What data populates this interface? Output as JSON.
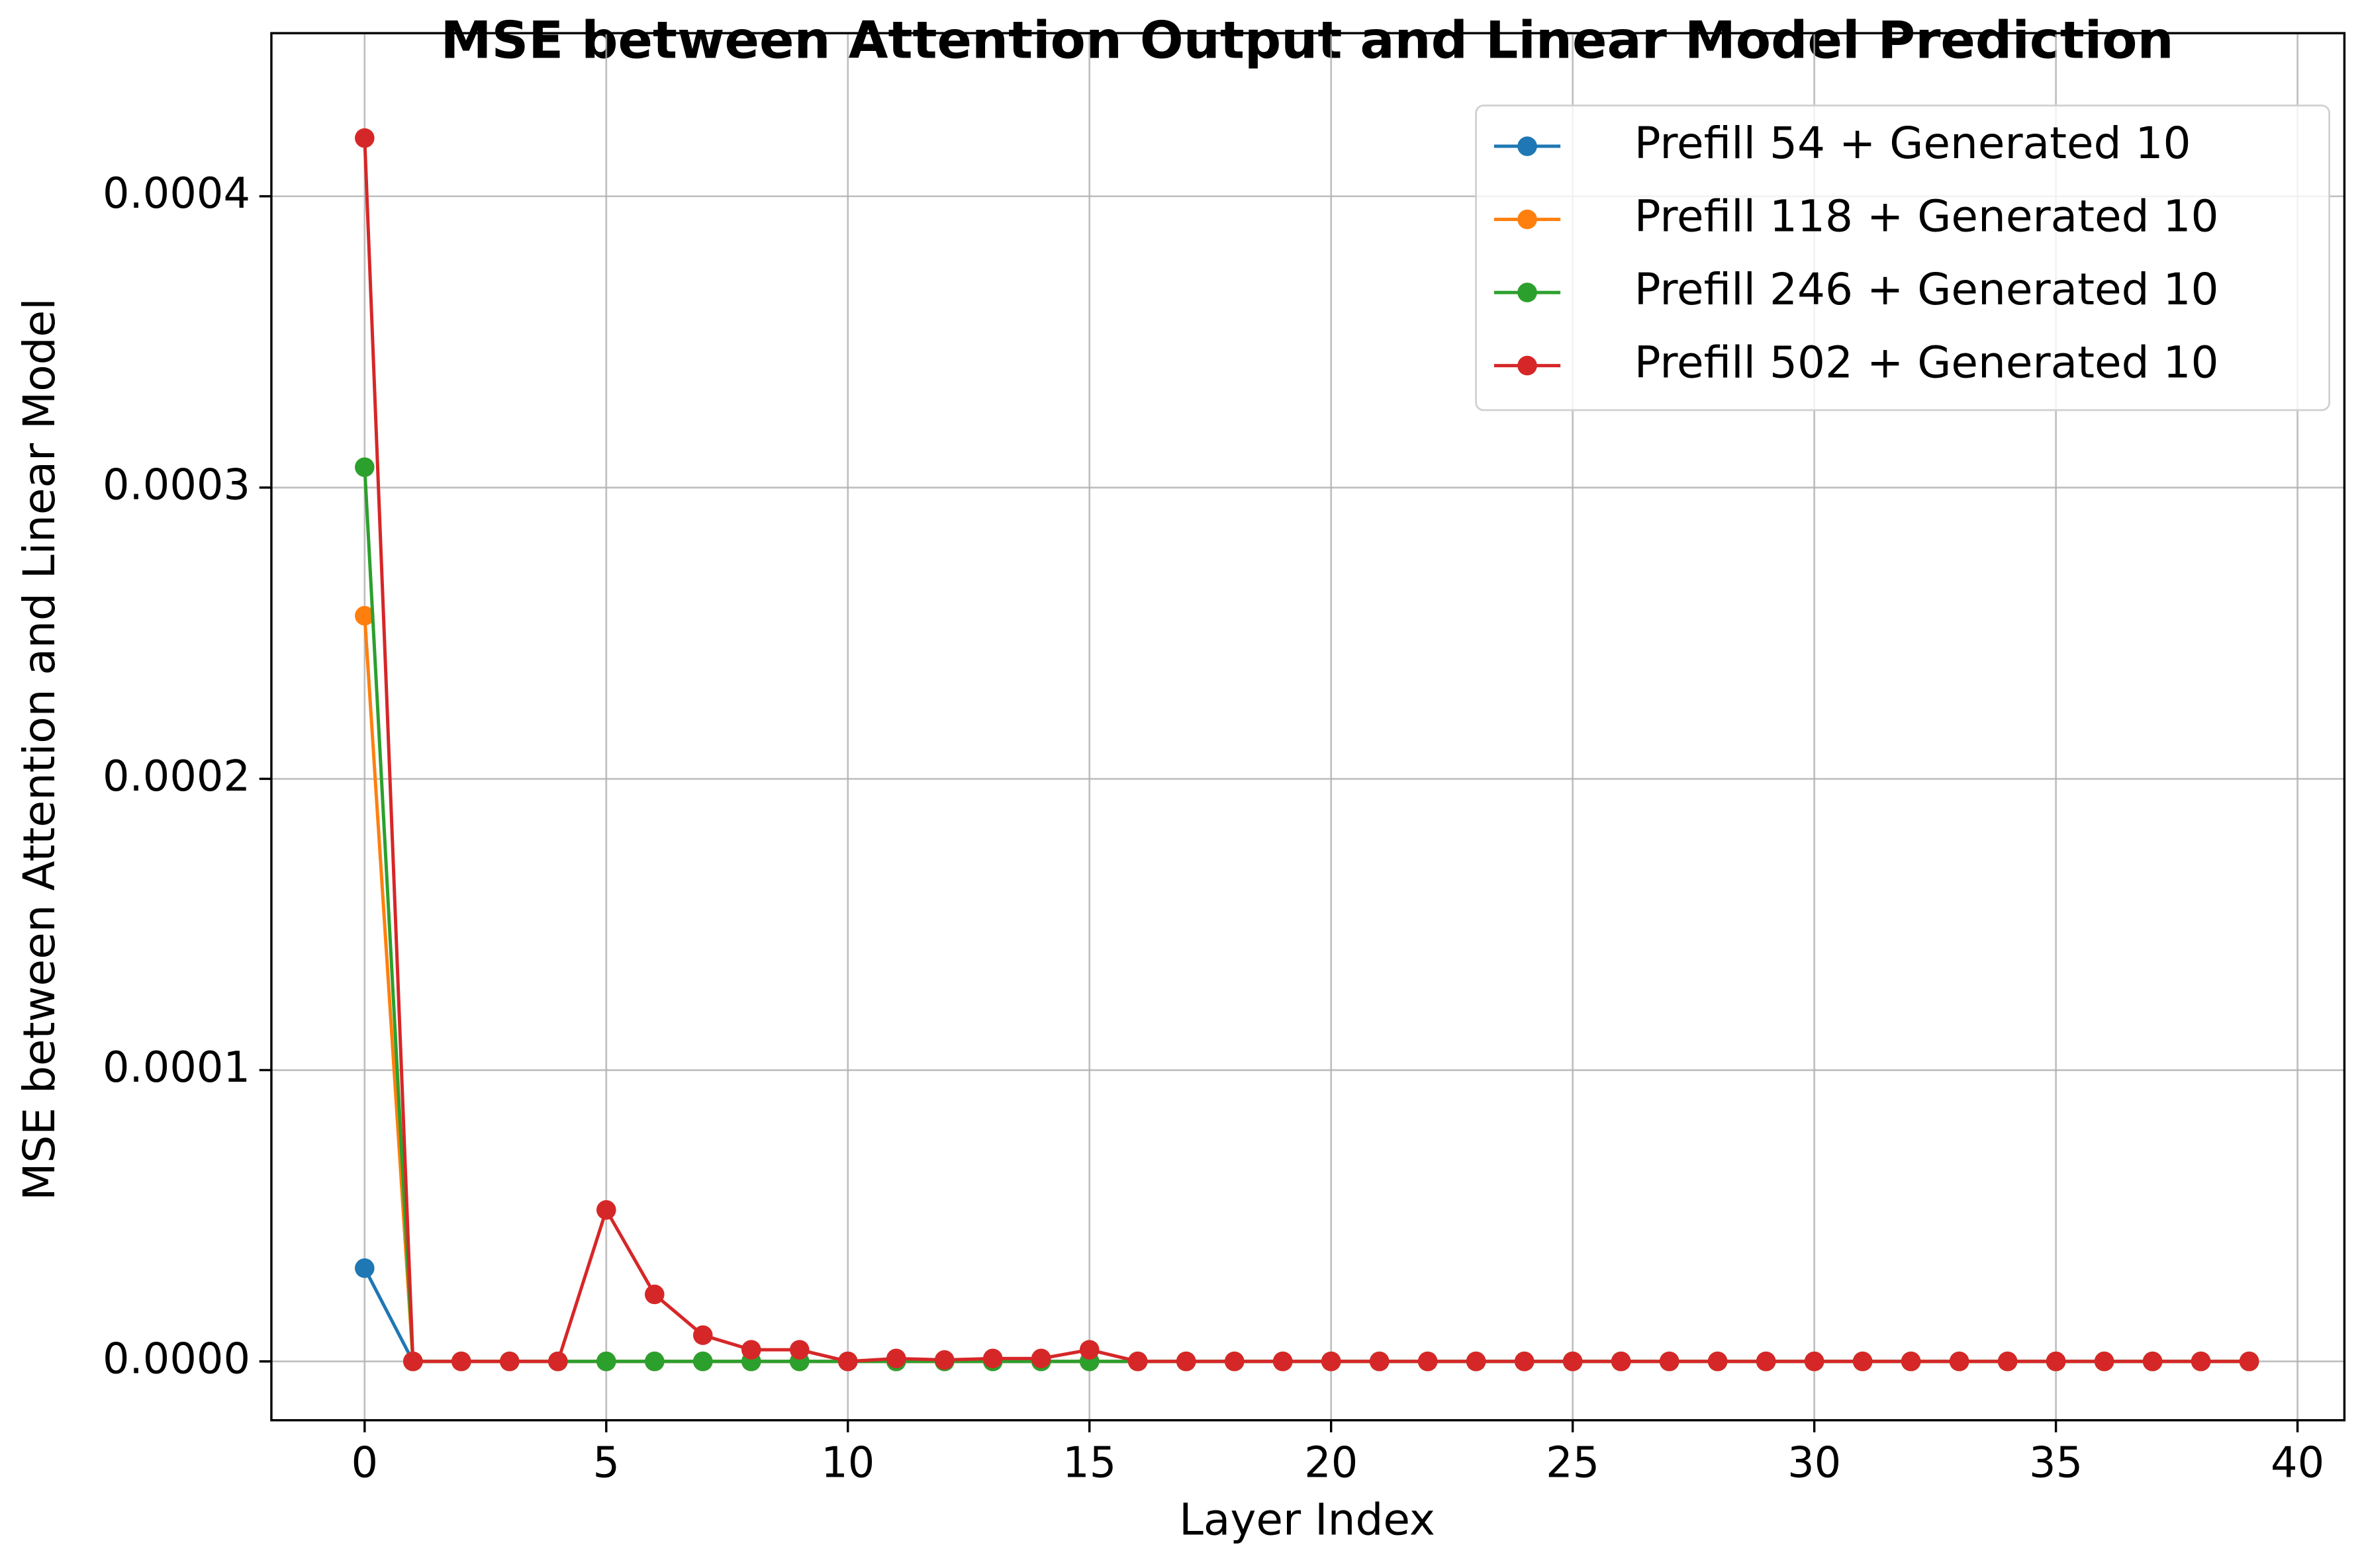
{
  "chart_data": {
    "type": "line",
    "title": "MSE between Attention Output and Linear Model Prediction",
    "xlabel": "Layer Index",
    "ylabel": "MSE between Attention and Linear Model",
    "x": [
      0,
      1,
      2,
      3,
      4,
      5,
      6,
      7,
      8,
      9,
      10,
      11,
      12,
      13,
      14,
      15,
      16,
      17,
      18,
      19,
      20,
      21,
      22,
      23,
      24,
      25,
      26,
      27,
      28,
      29,
      30,
      31,
      32,
      33,
      34,
      35,
      36,
      37,
      38,
      39
    ],
    "series": [
      {
        "name": "Prefill 54 + Generated 10",
        "color": "#1f77b4",
        "values": [
          3.2e-05,
          0,
          0,
          0,
          0,
          0,
          0,
          0,
          0,
          0,
          0,
          0,
          0,
          0,
          0,
          0,
          0,
          0,
          0,
          0,
          0,
          0,
          0,
          0,
          0,
          0,
          0,
          0,
          0,
          0,
          0,
          0,
          0,
          0,
          0,
          0,
          0,
          0,
          0,
          0
        ]
      },
      {
        "name": "Prefill 118 + Generated 10",
        "color": "#ff7f0e",
        "values": [
          0.000256,
          0,
          0,
          0,
          0,
          0,
          0,
          0,
          0,
          0,
          0,
          0,
          0,
          0,
          0,
          0,
          0,
          0,
          0,
          0,
          0,
          0,
          0,
          0,
          0,
          0,
          0,
          0,
          0,
          0,
          0,
          0,
          0,
          0,
          0,
          0,
          0,
          0,
          0,
          0
        ]
      },
      {
        "name": "Prefill 246 + Generated 10",
        "color": "#2ca02c",
        "values": [
          0.000307,
          0,
          0,
          0,
          0,
          0,
          0,
          0,
          0,
          0,
          0,
          0,
          0,
          0,
          0,
          0,
          0,
          0,
          0,
          0,
          0,
          0,
          0,
          0,
          0,
          0,
          0,
          0,
          0,
          0,
          0,
          0,
          0,
          0,
          0,
          0,
          0,
          0,
          0,
          0
        ]
      },
      {
        "name": "Prefill 502 + Generated 10",
        "color": "#d62728",
        "values": [
          0.00042,
          0,
          0,
          0,
          0,
          5.2e-05,
          2.3e-05,
          9e-06,
          4e-06,
          4e-06,
          0,
          1e-06,
          5e-07,
          1e-06,
          1e-06,
          4e-06,
          0,
          0,
          0,
          0,
          0,
          0,
          0,
          0,
          0,
          0,
          0,
          0,
          0,
          0,
          0,
          0,
          0,
          0,
          0,
          0,
          0,
          0,
          0,
          0
        ]
      }
    ],
    "xlim": [
      -1.93,
      40.97
    ],
    "xticks": [
      0,
      5,
      10,
      15,
      20,
      25,
      30,
      35,
      40
    ],
    "ylim": [
      -2.02e-05,
      0.000456
    ],
    "yticks": [
      {
        "value": 0,
        "label": "0.0000"
      },
      {
        "value": 0.0001,
        "label": "0.0001"
      },
      {
        "value": 0.0002,
        "label": "0.0002"
      },
      {
        "value": 0.0003,
        "label": "0.0003"
      },
      {
        "value": 0.0004,
        "label": "0.0004"
      }
    ],
    "grid": true,
    "legend": "upper right"
  }
}
